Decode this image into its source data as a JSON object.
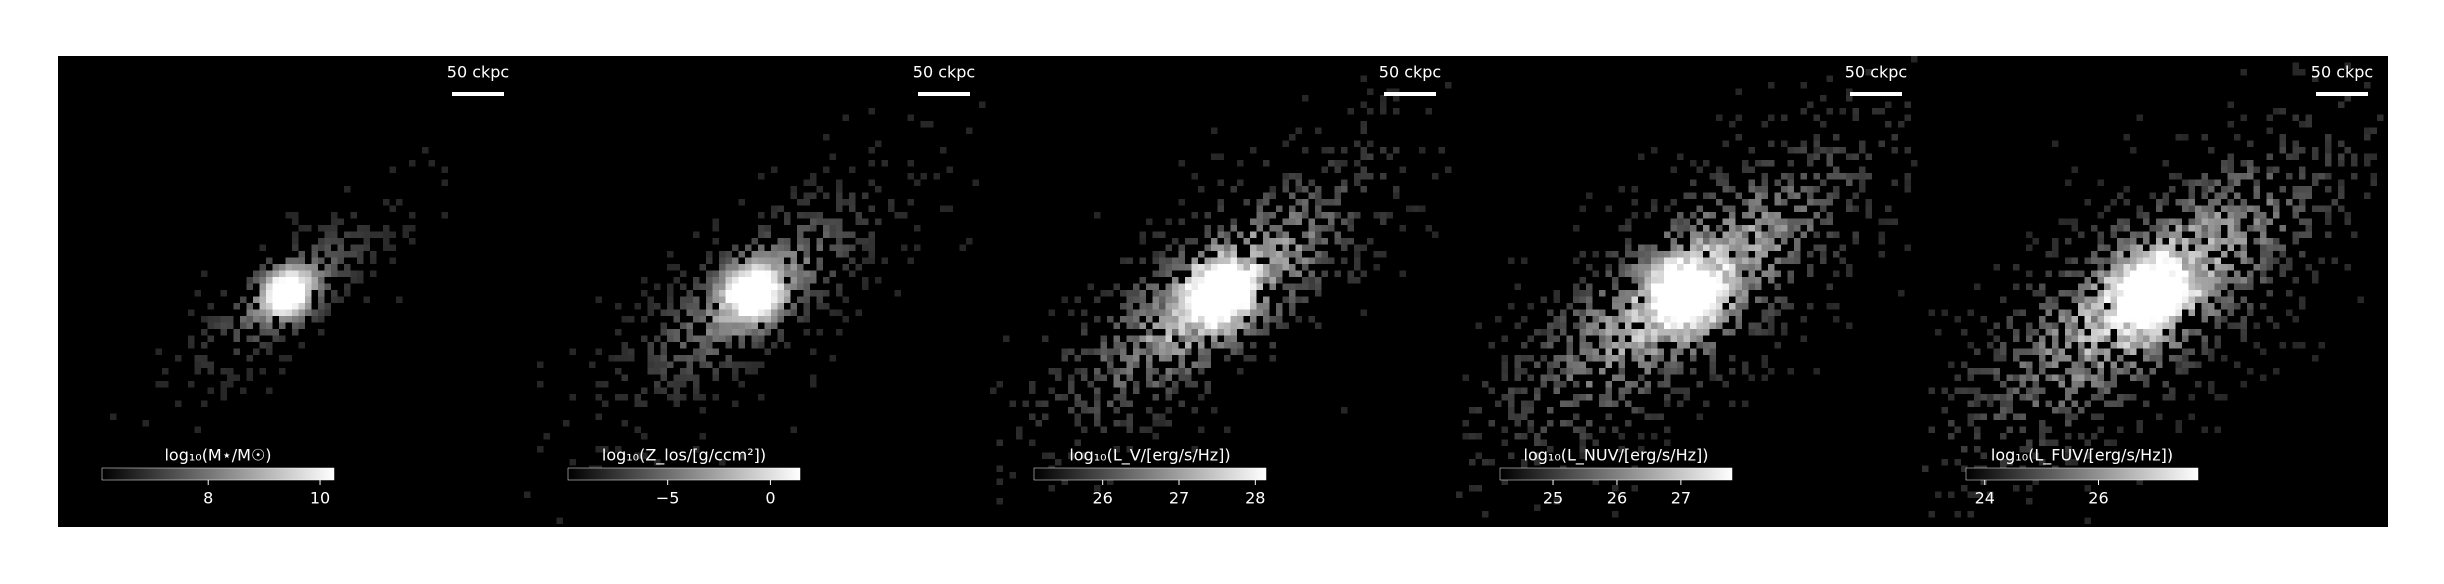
{
  "chart_data": [
    {
      "type": "image",
      "scale_bar": "50 ckpc",
      "colorbar_label": "log₁₀(M⋆/M☉)",
      "clim": [
        6.1,
        10.25
      ],
      "cticks": [
        8,
        10
      ]
    },
    {
      "type": "image",
      "scale_bar": "50 ckpc",
      "colorbar_label": "log₁₀(Z_los/[g/ccm²])",
      "clim": [
        -9.85,
        1.44
      ],
      "cticks": [
        {
          "value": -5,
          "label": "−5"
        },
        0
      ]
    },
    {
      "type": "image",
      "scale_bar": "50 ckpc",
      "colorbar_label": "log₁₀(L_V/[erg/s/Hz])",
      "clim": [
        25.1,
        28.14
      ],
      "cticks": [
        26,
        27,
        28
      ]
    },
    {
      "type": "image",
      "scale_bar": "50 ckpc",
      "colorbar_label": "log₁₀(L_NUV/[erg/s/Hz])",
      "clim": [
        24.17,
        27.8
      ],
      "cticks": [
        25,
        26,
        27
      ]
    },
    {
      "type": "image",
      "scale_bar": "50 ckpc",
      "colorbar_label": "log₁₀(L_FUV/[erg/s/Hz])",
      "clim": [
        23.67,
        27.75
      ],
      "cticks": [
        24,
        26
      ]
    }
  ]
}
